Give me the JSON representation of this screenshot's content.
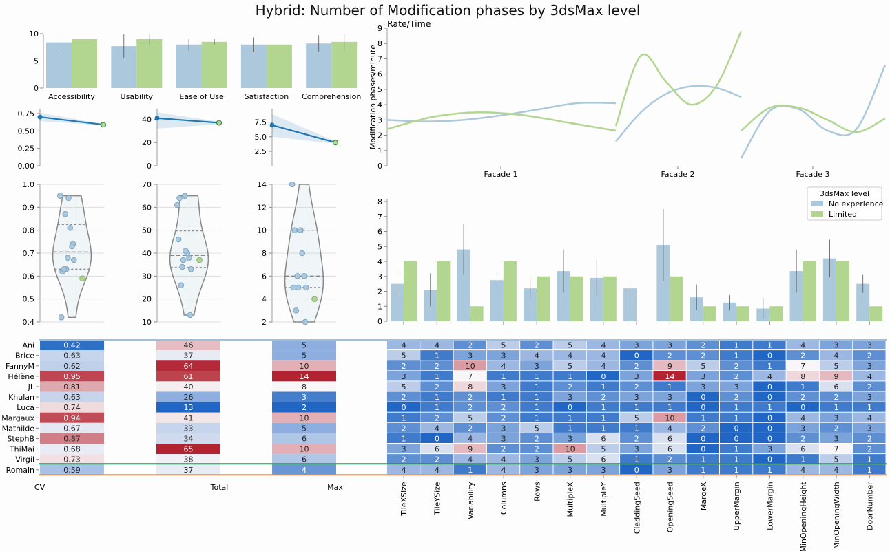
{
  "title": "Hybrid: Number of Modification phases by 3dsMax level",
  "colors": {
    "none": "#abc8dc",
    "limited": "#b2d590",
    "line": "#1f77b4",
    "violin": "#888888"
  },
  "legend": {
    "title": "3dsMax level",
    "items": [
      "No experience",
      "Limited"
    ]
  },
  "chart_data": [
    {
      "id": "questionnaire",
      "type": "bar",
      "categories": [
        "Accessibility",
        "Usability",
        "Ease of Use",
        "Satisfaction",
        "Comprehension"
      ],
      "ylim": [
        0,
        10
      ],
      "yticks": [
        0,
        5,
        10
      ],
      "series": [
        {
          "name": "No experience",
          "values": [
            8.4,
            7.7,
            8.0,
            8.0,
            8.2
          ],
          "err": [
            1.4,
            2.2,
            1.1,
            1.3,
            1.5
          ]
        },
        {
          "name": "Limited",
          "values": [
            9.0,
            9.0,
            8.5,
            8.0,
            8.5
          ],
          "err": [
            0,
            1.0,
            0.5,
            0,
            1.4
          ]
        }
      ]
    },
    {
      "id": "regression",
      "type": "line",
      "panels": [
        {
          "ylim": [
            0,
            0.75
          ],
          "yticks": [
            "0.00",
            "0.25",
            "0.50",
            "0.75"
          ],
          "y": [
            0.7,
            0.59
          ],
          "band": [
            [
              0.64,
              0.76
            ],
            [
              0.58,
              0.6
            ]
          ]
        },
        {
          "ylim": [
            0,
            45
          ],
          "yticks": [
            "0",
            "20",
            "40"
          ],
          "y": [
            41,
            37
          ],
          "band": [
            [
              32,
              46
            ],
            [
              36,
              38
            ]
          ]
        },
        {
          "ylim": [
            0,
            9
          ],
          "yticks": [
            "2.5",
            "5.0",
            "7.5"
          ],
          "y": [
            7.0,
            4.0
          ],
          "band": [
            [
              5.0,
              8.9
            ],
            [
              3.8,
              4.2
            ]
          ]
        }
      ]
    },
    {
      "id": "violins",
      "type": "violin",
      "panels": [
        {
          "label": "CV",
          "ylim": [
            0.4,
            1.0
          ],
          "yticks": [
            "0.4",
            "0.5",
            "0.6",
            "0.7",
            "0.8",
            "0.9",
            "1.0"
          ],
          "none": [
            0.42,
            0.63,
            0.62,
            0.95,
            0.81,
            0.63,
            0.74,
            0.94,
            0.67,
            0.87,
            0.68,
            0.73
          ],
          "limited": [
            0.59
          ]
        },
        {
          "label": "Total",
          "ylim": [
            10,
            70
          ],
          "yticks": [
            "10",
            "20",
            "30",
            "40",
            "50",
            "60",
            "70"
          ],
          "none": [
            46,
            37,
            64,
            61,
            40,
            26,
            13,
            41,
            33,
            34,
            65,
            38
          ],
          "limited": [
            37
          ]
        },
        {
          "label": "Max",
          "ylim": [
            2,
            14
          ],
          "yticks": [
            "2",
            "4",
            "6",
            "8",
            "10",
            "12",
            "14"
          ],
          "none": [
            5,
            5,
            10,
            14,
            8,
            3,
            2,
            10,
            5,
            6,
            10,
            6
          ],
          "limited": [
            4
          ]
        }
      ]
    },
    {
      "id": "rate_time",
      "type": "line",
      "title": "Rate/Time",
      "ylabel": "Modification phases/minute",
      "ylim": [
        0,
        9
      ],
      "yticks": [
        "0",
        "1",
        "2",
        "3",
        "4",
        "5",
        "6",
        "7",
        "8",
        "9"
      ],
      "facets": [
        "Facade 1",
        "Facade 2",
        "Facade 3"
      ],
      "series": [
        {
          "name": "No experience",
          "points": [
            [
              3.0,
              2.9,
              3.0,
              3.3,
              3.7,
              4.1,
              4.1
            ],
            [
              1.6,
              3.5,
              4.7,
              5.2,
              5.1,
              4.5
            ],
            [
              0.5,
              3.6,
              3.7,
              2.3,
              2.4,
              6.6
            ]
          ]
        },
        {
          "name": "Limited",
          "points": [
            [
              2.4,
              3.2,
              3.5,
              3.3,
              2.8,
              2.3
            ],
            [
              2.6,
              7.2,
              5.5,
              4.0,
              5.2,
              8.8
            ],
            [
              2.3,
              3.8,
              3.8,
              3.0,
              2.2,
              3.1
            ]
          ]
        }
      ]
    },
    {
      "id": "parameters",
      "type": "bar",
      "ylim": [
        0,
        8
      ],
      "yticks": [
        "0",
        "1",
        "2",
        "3",
        "4",
        "5",
        "6",
        "7",
        "8"
      ],
      "series": [
        {
          "name": "No experience",
          "values": [
            2.5,
            2.1,
            4.8,
            2.75,
            2.2,
            3.35,
            2.9,
            2.2,
            5.1,
            1.6,
            1.25,
            0.85,
            3.35,
            4.2,
            2.5
          ],
          "err": [
            0.85,
            1.1,
            1.7,
            0.65,
            0.7,
            1.45,
            1.2,
            0.7,
            2.4,
            0.85,
            0.5,
            0.7,
            1.45,
            1.25,
            0.6
          ]
        },
        {
          "name": "Limited",
          "values": [
            4,
            4,
            1,
            4,
            3,
            3,
            3,
            0,
            3,
            1,
            1,
            1,
            4,
            4,
            1
          ]
        }
      ]
    },
    {
      "id": "heatmap",
      "type": "heatmap",
      "rows": [
        "Ani",
        "Brice",
        "FannyM",
        "Hélène",
        "JL",
        "Khulan",
        "Luca",
        "Margaux",
        "Mathilde",
        "StephB",
        "ThiMai",
        "Virgil",
        "Romain"
      ],
      "summary_cols": [
        "CV",
        "Total",
        "Max"
      ],
      "summary": [
        [
          "0.42",
          "46",
          "5"
        ],
        [
          "0.63",
          "37",
          "5"
        ],
        [
          "0.62",
          "64",
          "10"
        ],
        [
          "0.95",
          "61",
          "14"
        ],
        [
          "0.81",
          "40",
          "8"
        ],
        [
          "0.63",
          "26",
          "3"
        ],
        [
          "0.74",
          "13",
          "2"
        ],
        [
          "0.94",
          "41",
          "10"
        ],
        [
          "0.67",
          "33",
          "5"
        ],
        [
          "0.87",
          "34",
          "6"
        ],
        [
          "0.68",
          "65",
          "10"
        ],
        [
          "0.73",
          "38",
          "6"
        ],
        [
          "0.59",
          "37",
          "4"
        ]
      ],
      "param_cols": [
        "TileXSize",
        "TileYSize",
        "Variability",
        "Columns",
        "Rows",
        "MultipleX",
        "MultipleY",
        "CladdingSeed",
        "OpeningSeed",
        "MargeX",
        "UpperMargin",
        "LowerMargin",
        "MinOpeningHeight",
        "MinOpeningWidth",
        "DoorNumber"
      ],
      "params": [
        [
          4,
          4,
          2,
          5,
          2,
          5,
          4,
          3,
          3,
          2,
          1,
          1,
          4,
          3,
          3
        ],
        [
          5,
          1,
          3,
          3,
          4,
          4,
          4,
          0,
          2,
          2,
          1,
          0,
          2,
          4,
          2
        ],
        [
          2,
          2,
          10,
          4,
          3,
          5,
          4,
          2,
          9,
          5,
          2,
          1,
          7,
          5,
          3
        ],
        [
          3,
          1,
          7,
          1,
          1,
          1,
          0,
          3,
          14,
          3,
          2,
          4,
          8,
          9,
          4
        ],
        [
          5,
          2,
          8,
          3,
          1,
          2,
          1,
          2,
          1,
          3,
          3,
          0,
          1,
          6,
          2
        ],
        [
          2,
          1,
          2,
          1,
          1,
          3,
          2,
          3,
          3,
          0,
          2,
          0,
          2,
          2,
          3
        ],
        [
          0,
          1,
          2,
          2,
          1,
          0,
          1,
          1,
          1,
          0,
          1,
          1,
          0,
          1,
          1
        ],
        [
          1,
          2,
          5,
          2,
          1,
          1,
          1,
          5,
          10,
          1,
          1,
          0,
          4,
          3,
          4
        ],
        [
          2,
          4,
          2,
          3,
          5,
          1,
          1,
          1,
          4,
          2,
          0,
          0,
          3,
          2,
          3
        ],
        [
          1,
          0,
          4,
          3,
          2,
          3,
          6,
          2,
          6,
          0,
          0,
          0,
          2,
          3,
          2
        ],
        [
          3,
          6,
          9,
          2,
          2,
          10,
          5,
          3,
          6,
          0,
          1,
          3,
          6,
          7,
          2
        ],
        [
          2,
          2,
          4,
          4,
          3,
          5,
          6,
          1,
          2,
          1,
          1,
          0,
          1,
          5,
          1
        ],
        [
          4,
          4,
          1,
          4,
          3,
          3,
          3,
          0,
          3,
          1,
          1,
          1,
          4,
          4,
          1
        ]
      ]
    }
  ]
}
